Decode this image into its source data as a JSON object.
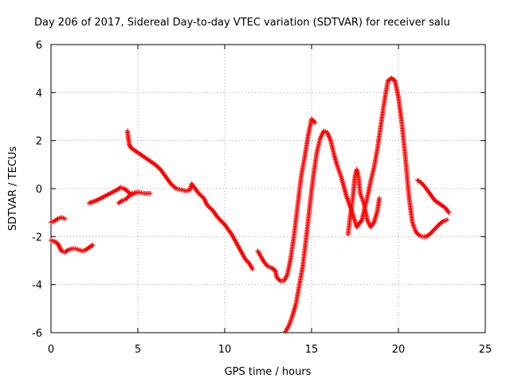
{
  "chart_data": {
    "type": "scatter",
    "title": "Day 206 of 2017, Sidereal Day-to-day VTEC variation (SDTVAR) for receiver salu",
    "xlabel": "GPS time / hours",
    "ylabel": "SDTVAR / TECUs",
    "xlim": [
      0,
      25
    ],
    "ylim": [
      -6,
      6
    ],
    "x_ticks": [
      0,
      5,
      10,
      15,
      20,
      25
    ],
    "y_ticks": [
      -6,
      -4,
      -2,
      0,
      2,
      4,
      6
    ],
    "x_tick_labels": [
      "0",
      "5",
      "10",
      "15",
      "20",
      "25"
    ],
    "y_tick_labels": [
      "-6",
      "-4",
      "-2",
      "0",
      "2",
      "4",
      "6"
    ],
    "grid": true,
    "marker": "plus",
    "color": "#ff0000",
    "series": [
      {
        "x": [
          0.0,
          0.2,
          0.4,
          0.6,
          0.8
        ],
        "y": [
          -1.4,
          -1.35,
          -1.25,
          -1.2,
          -1.25
        ]
      },
      {
        "x": [
          0.0,
          0.2,
          0.4,
          0.5,
          0.6,
          0.8,
          1.0,
          1.2,
          1.4,
          1.6,
          1.8,
          2.0,
          2.2,
          2.4
        ],
        "y": [
          -2.15,
          -2.2,
          -2.3,
          -2.45,
          -2.6,
          -2.65,
          -2.55,
          -2.5,
          -2.5,
          -2.55,
          -2.6,
          -2.55,
          -2.45,
          -2.35
        ]
      },
      {
        "x": [
          2.2,
          2.6,
          3.0,
          3.4,
          3.8,
          4.0,
          4.2,
          4.4,
          4.6,
          4.8,
          5.0,
          5.4,
          5.7
        ],
        "y": [
          -0.6,
          -0.5,
          -0.35,
          -0.2,
          -0.05,
          0.05,
          0.0,
          -0.1,
          -0.25,
          -0.2,
          -0.15,
          -0.2,
          -0.2
        ]
      },
      {
        "x": [
          3.9,
          4.1,
          4.3,
          4.5,
          4.7,
          4.9
        ],
        "y": [
          -0.6,
          -0.5,
          -0.45,
          -0.3,
          -0.2,
          -0.15
        ]
      },
      {
        "x": [
          4.4,
          4.45,
          4.5,
          4.6,
          4.8,
          5.0,
          5.3,
          5.6,
          6.0,
          6.3,
          6.6,
          6.9,
          7.2,
          7.5,
          7.8,
          8.0,
          8.1,
          8.2,
          8.5,
          8.8,
          9.0,
          9.3,
          9.6,
          10.0,
          10.4,
          10.7,
          11.0,
          11.2,
          11.4,
          11.6
        ],
        "y": [
          2.4,
          2.1,
          1.85,
          1.7,
          1.6,
          1.5,
          1.35,
          1.2,
          1.0,
          0.8,
          0.5,
          0.2,
          0.0,
          -0.05,
          -0.1,
          -0.05,
          0.2,
          0.1,
          -0.2,
          -0.4,
          -0.7,
          -0.9,
          -1.2,
          -1.5,
          -1.9,
          -2.3,
          -2.7,
          -2.95,
          -3.1,
          -3.35
        ]
      },
      {
        "x": [
          11.9,
          12.1,
          12.3,
          12.5,
          12.7,
          12.9,
          13.0,
          13.2,
          13.4,
          13.6,
          13.8,
          14.0,
          14.2,
          14.4,
          14.6,
          14.8,
          15.0,
          15.2
        ],
        "y": [
          -2.6,
          -2.85,
          -3.1,
          -3.25,
          -3.3,
          -3.4,
          -3.7,
          -3.85,
          -3.85,
          -3.6,
          -2.9,
          -1.9,
          -0.7,
          0.5,
          1.3,
          2.2,
          2.9,
          2.75
        ]
      },
      {
        "x": [
          13.5,
          13.7,
          13.9,
          14.1,
          14.3,
          14.5,
          14.7,
          14.9,
          15.1,
          15.3,
          15.5,
          15.7,
          15.9,
          16.1,
          16.3,
          16.5,
          16.7,
          17.0,
          17.3,
          17.6,
          17.9,
          18.2,
          18.4,
          18.6,
          18.8,
          19.0,
          19.2,
          19.4,
          19.6,
          19.8,
          20.0,
          20.2,
          20.4,
          20.6,
          20.8,
          21.0,
          21.2,
          21.4,
          21.6,
          21.8,
          22.0,
          22.2,
          22.4,
          22.6,
          22.8
        ],
        "y": [
          -5.95,
          -5.7,
          -5.3,
          -4.8,
          -4.0,
          -3.2,
          -2.0,
          -0.7,
          0.5,
          1.5,
          2.1,
          2.4,
          2.35,
          2.0,
          1.4,
          0.9,
          0.5,
          -0.3,
          -0.9,
          -1.6,
          -1.3,
          -0.4,
          0.3,
          0.9,
          1.7,
          2.7,
          3.7,
          4.5,
          4.6,
          4.5,
          3.8,
          2.7,
          1.3,
          -0.3,
          -1.4,
          -1.8,
          -1.95,
          -2.0,
          -2.0,
          -1.9,
          -1.75,
          -1.6,
          -1.45,
          -1.35,
          -1.3
        ]
      },
      {
        "x": [
          17.1,
          17.2,
          17.3,
          17.4,
          17.5,
          17.6,
          17.7,
          17.8,
          18.0,
          18.2,
          18.4,
          18.6,
          18.8,
          18.9
        ],
        "y": [
          -1.9,
          -1.3,
          -0.8,
          -0.2,
          0.5,
          0.8,
          0.5,
          -0.2,
          -0.6,
          -1.3,
          -1.6,
          -1.4,
          -0.9,
          -0.4
        ]
      },
      {
        "x": [
          21.1,
          21.3,
          21.5,
          21.7,
          21.9,
          22.1,
          22.3,
          22.5,
          22.7,
          22.9
        ],
        "y": [
          0.35,
          0.25,
          0.1,
          -0.1,
          -0.3,
          -0.5,
          -0.6,
          -0.7,
          -0.8,
          -1.0
        ]
      }
    ]
  }
}
